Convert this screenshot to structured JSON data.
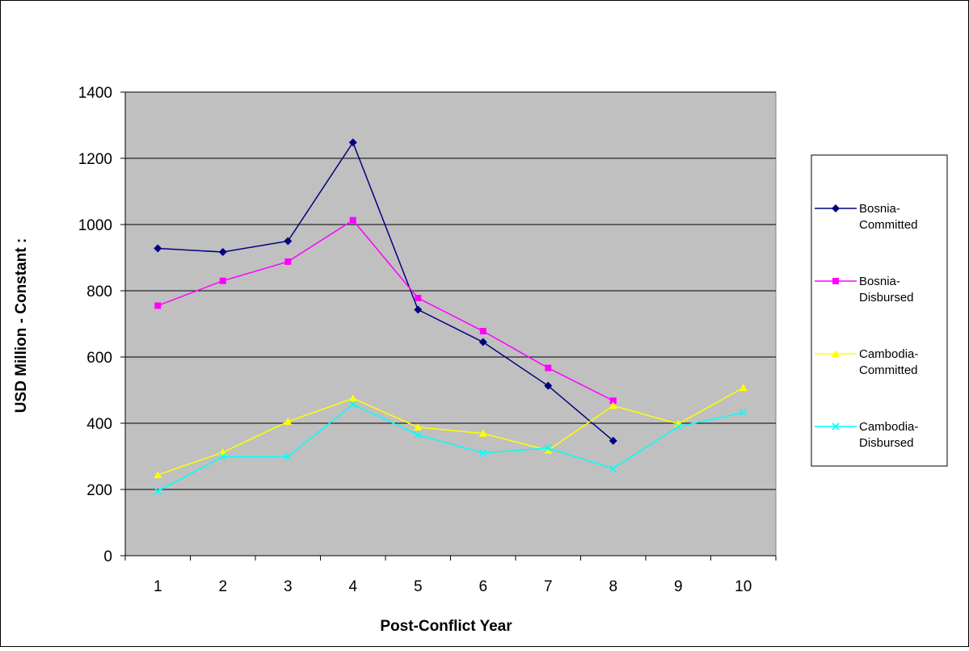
{
  "chart_data": {
    "type": "line",
    "title": "",
    "xlabel": "Post-Conflict Year",
    "ylabel": "USD Million - Constant :",
    "ylim": [
      0,
      1400
    ],
    "yticks": [
      0,
      200,
      400,
      600,
      800,
      1000,
      1200,
      1400
    ],
    "categories": [
      "1",
      "2",
      "3",
      "4",
      "5",
      "6",
      "7",
      "8",
      "9",
      "10"
    ],
    "grid": "horizontal",
    "legend_position": "right",
    "plot_background": "#c0c0c0",
    "series": [
      {
        "name": "Bosnia-Committed",
        "legend_lines": [
          "Bosnia-",
          "Committed"
        ],
        "color": "#000080",
        "marker": "diamond",
        "values": [
          928,
          917,
          950,
          1248,
          743,
          645,
          513,
          347,
          null,
          null
        ]
      },
      {
        "name": "Bosnia-Disbursed",
        "legend_lines": [
          "Bosnia-",
          "Disbursed"
        ],
        "color": "#ff00ff",
        "marker": "square",
        "values": [
          755,
          830,
          888,
          1013,
          778,
          678,
          567,
          468,
          null,
          null
        ]
      },
      {
        "name": "Cambodia-Committed",
        "legend_lines": [
          "Cambodia-",
          "Committed"
        ],
        "color": "#ffff00",
        "marker": "triangle",
        "values": [
          244,
          312,
          405,
          475,
          388,
          369,
          318,
          453,
          398,
          507
        ]
      },
      {
        "name": "Cambodia-Disbursed",
        "legend_lines": [
          "Cambodia-",
          "Disbursed"
        ],
        "color": "#00ffff",
        "marker": "x",
        "values": [
          195,
          299,
          299,
          457,
          365,
          310,
          325,
          263,
          390,
          432
        ]
      }
    ]
  }
}
